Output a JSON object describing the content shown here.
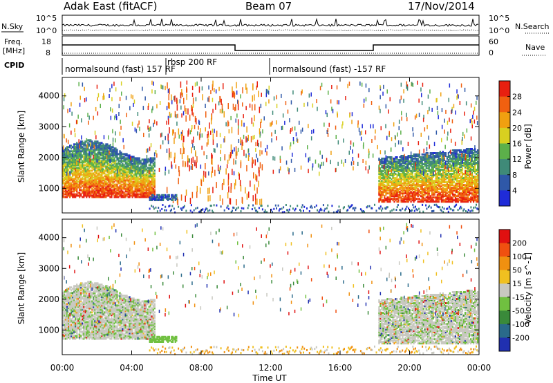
{
  "header": {
    "station": "Adak East (fitACF)",
    "beam": "Beam 07",
    "date": "17/Nov/2014"
  },
  "top_panels": {
    "nsky_label": "N.Sky",
    "nsearch_label": "N.Search",
    "nsky_ticks": [
      "10^5",
      "10^0"
    ],
    "nsearch_ticks": [
      "10^5",
      "10^0"
    ],
    "freq_label_1": "Freq.",
    "freq_label_2": "[MHz]",
    "freq_ticks": [
      "18",
      "8"
    ],
    "nave_label": "Nave",
    "nave_ticks": [
      "60",
      "0"
    ],
    "cpid_label": "CPID",
    "cpid_segments": [
      {
        "label": "normalsound (fast) 157 RF",
        "start_h": 0,
        "end_h": 6
      },
      {
        "label": "rbsp 200 RF",
        "start_h": 6,
        "end_h": 12
      },
      {
        "label": "normalsound (fast) -157 RF",
        "start_h": 12,
        "end_h": 24
      }
    ]
  },
  "chart_data": [
    {
      "type": "heatmap",
      "title": "",
      "xlabel": "Time UT",
      "ylabel": "Slant Range [km]",
      "xlim": [
        0,
        24
      ],
      "ylim": [
        200,
        4600
      ],
      "x_ticks": [
        "00:00",
        "04:00",
        "08:00",
        "12:00",
        "16:00",
        "20:00",
        "00:00"
      ],
      "y_ticks": [
        1000,
        2000,
        3000,
        4000
      ],
      "colorbar": {
        "label": "Power [dB]",
        "ticks": [
          "4",
          "8",
          "12",
          "16",
          "20",
          "24",
          "28"
        ],
        "colors": [
          "#1f2bd8",
          "#2f58a8",
          "#3f8a78",
          "#5cb04a",
          "#d8d020",
          "#f0a010",
          "#f06010",
          "#e82010"
        ]
      }
    },
    {
      "type": "heatmap",
      "title": "",
      "xlabel": "Time UT",
      "ylabel": "Slant Range [km]",
      "xlim": [
        0,
        24
      ],
      "ylim": [
        200,
        4600
      ],
      "x_ticks": [
        "00:00",
        "04:00",
        "08:00",
        "12:00",
        "16:00",
        "20:00",
        "00:00"
      ],
      "y_ticks": [
        1000,
        2000,
        3000,
        4000
      ],
      "colorbar": {
        "label": "Velocity [m s^-1]",
        "ticks": [
          "200",
          "100",
          "50",
          "15",
          "-15",
          "-50",
          "-100",
          "-200"
        ],
        "colors": [
          "#2030b0",
          "#2a6a8a",
          "#3a8a3a",
          "#70c040",
          "#c8c8c0",
          "#f0c020",
          "#f09010",
          "#f05010",
          "#e01010"
        ]
      }
    }
  ],
  "time_axis_label": "Time UT"
}
